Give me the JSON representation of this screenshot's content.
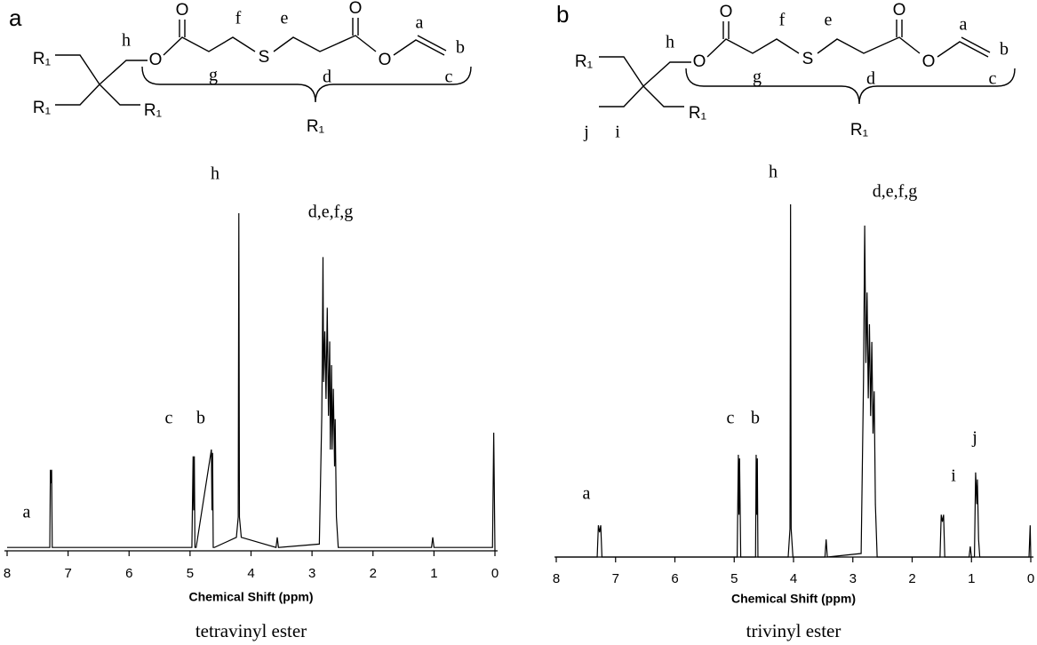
{
  "chart_data": [
    {
      "type": "line",
      "panel": "a",
      "caption": "tetravinyl ester",
      "xlabel": "Chemical Shift (ppm)",
      "color": "#000000",
      "xlim": [
        8,
        0
      ],
      "xticks": [
        8,
        7,
        6,
        5,
        4,
        3,
        2,
        1,
        0
      ],
      "x": [
        8,
        7.3,
        7.29,
        7.28,
        7.27,
        7.26,
        4.97,
        4.95,
        4.94,
        4.93,
        4.92,
        4.9,
        4.65,
        4.64,
        4.63,
        4.62,
        4.6,
        4.24,
        4.21,
        4.2,
        4.19,
        4.16,
        3.59,
        3.57,
        3.55,
        2.88,
        2.84,
        2.83,
        2.82,
        2.81,
        2.79,
        2.77,
        2.75,
        2.73,
        2.71,
        2.7,
        2.68,
        2.67,
        2.65,
        2.63,
        2.62,
        2.6,
        2.57,
        1.04,
        1.02,
        1.0,
        0.04,
        0.02,
        0.0
      ],
      "values": [
        1,
        1,
        24,
        20,
        24,
        1,
        1,
        28,
        12,
        28,
        1,
        1,
        30,
        12,
        29,
        1,
        1,
        4,
        10,
        100,
        10,
        4,
        1,
        4,
        1,
        2,
        40,
        60,
        87,
        50,
        65,
        45,
        72,
        40,
        62,
        30,
        55,
        30,
        48,
        25,
        39,
        10,
        1,
        1,
        4,
        1,
        1,
        35,
        0
      ],
      "annotations": [
        "a",
        "c",
        "b",
        "h",
        "d,e,f,g"
      ],
      "structure_labels": [
        "R₁",
        "R₁",
        "R₁",
        "h",
        "O",
        "O",
        "f",
        "g",
        "S",
        "e",
        "d",
        "O",
        "O",
        "a",
        "b",
        "c",
        "R₁"
      ]
    },
    {
      "type": "line",
      "panel": "b",
      "caption": "trivinyl ester",
      "xlabel": "Chemical Shift (ppm)",
      "color": "#000000",
      "xlim": [
        8,
        0
      ],
      "xticks": [
        8,
        7,
        6,
        5,
        4,
        3,
        2,
        1,
        0
      ],
      "x": [
        8,
        7.31,
        7.29,
        7.27,
        7.25,
        7.23,
        4.95,
        4.93,
        4.92,
        4.91,
        4.89,
        4.64,
        4.63,
        4.62,
        4.61,
        4.6,
        4.09,
        4.06,
        4.05,
        4.04,
        4.01,
        3.47,
        3.45,
        3.43,
        2.86,
        2.82,
        2.8,
        2.78,
        2.76,
        2.74,
        2.72,
        2.7,
        2.68,
        2.66,
        2.64,
        2.62,
        2.59,
        1.53,
        1.51,
        1.49,
        1.47,
        1.45,
        1.04,
        1.02,
        1.0,
        0.95,
        0.93,
        0.91,
        0.9,
        0.88,
        0.86,
        0.03,
        0.01,
        0.0
      ],
      "values": [
        0,
        0,
        9,
        7,
        9,
        0,
        0,
        29,
        12,
        28,
        0,
        0,
        29,
        12,
        28,
        0,
        0,
        8,
        100,
        8,
        0,
        0,
        5,
        0,
        1,
        50,
        94,
        55,
        75,
        45,
        66,
        40,
        61,
        35,
        47,
        15,
        0,
        0,
        12,
        10,
        12,
        0,
        0,
        3,
        0,
        0,
        24,
        15,
        22,
        5,
        0,
        0,
        9,
        0
      ],
      "annotations": [
        "a",
        "c",
        "b",
        "h",
        "d,e,f,g",
        "i",
        "j"
      ],
      "structure_labels": [
        "R₁",
        "j",
        "i",
        "R₁",
        "h",
        "O",
        "O",
        "f",
        "g",
        "S",
        "e",
        "d",
        "O",
        "O",
        "a",
        "b",
        "c",
        "R₁"
      ]
    }
  ]
}
